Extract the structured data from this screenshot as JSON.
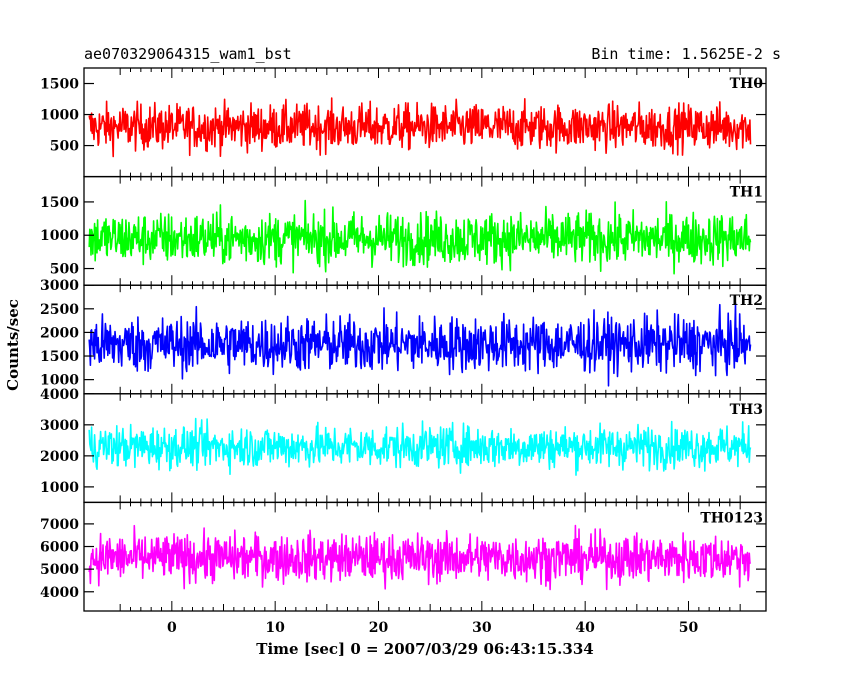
{
  "chart_data": {
    "type": "line",
    "title": "ae070329064315_wam1_bst",
    "subtitle": "Bin time: 1.5625E-2 s",
    "xlabel": "Time [sec] 0 = 2007/03/29 06:43:15.334",
    "ylabel": "Counts/sec",
    "xlim": [
      -8.5,
      57.5
    ],
    "data_x_range": [
      -8,
      56
    ],
    "x_ticks": [
      0,
      10,
      20,
      30,
      40,
      50
    ],
    "grid": false,
    "panels": [
      {
        "name": "TH0",
        "color": "#ff0000",
        "ylim": [
          0,
          1750
        ],
        "y_ticks": [
          500,
          1000,
          1500
        ],
        "baseline": 800,
        "spread": 260,
        "y_min_obs": 150,
        "y_max_obs": 1750
      },
      {
        "name": "TH1",
        "color": "#00ff00",
        "ylim": [
          250,
          1880
        ],
        "y_ticks": [
          500,
          1000,
          1500
        ],
        "baseline": 950,
        "spread": 280,
        "y_min_obs": 250,
        "y_max_obs": 1880
      },
      {
        "name": "TH2",
        "color": "#0000ff",
        "ylim": [
          700,
          3000
        ],
        "y_ticks": [
          1000,
          1500,
          2000,
          2500,
          3000
        ],
        "baseline": 1750,
        "spread": 420,
        "y_min_obs": 700,
        "y_max_obs": 3000
      },
      {
        "name": "TH3",
        "color": "#00ffff",
        "ylim": [
          500,
          4000
        ],
        "y_ticks": [
          1000,
          2000,
          3000,
          4000
        ],
        "baseline": 2300,
        "spread": 480,
        "y_min_obs": 700,
        "y_max_obs": 3950
      },
      {
        "name": "TH0123",
        "color": "#ff00ff",
        "ylim": [
          3150,
          7950
        ],
        "y_ticks": [
          4000,
          5000,
          6000,
          7000
        ],
        "baseline": 5500,
        "spread": 750,
        "y_min_obs": 3200,
        "y_max_obs": 7900
      }
    ]
  }
}
